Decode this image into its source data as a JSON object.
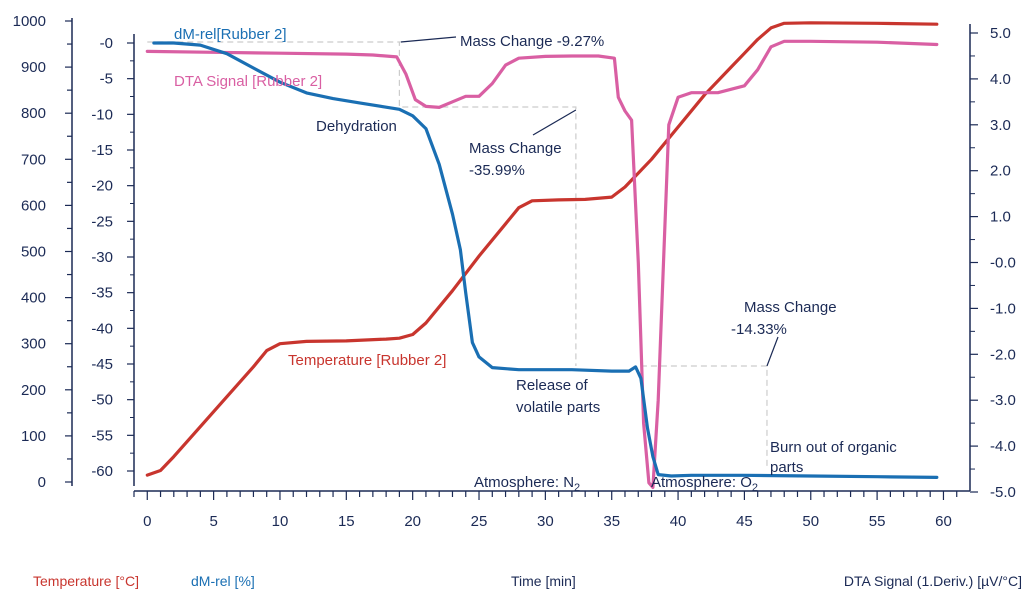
{
  "colors": {
    "temperature": "#c8352e",
    "dm": "#1a6fb3",
    "dta": "#d95fa3",
    "axis": "#1b2a55",
    "guide": "#cccccc"
  },
  "chart_data": {
    "type": "line",
    "x_axis": {
      "label": "Time [min]",
      "range": [
        -1,
        62
      ],
      "ticks": [
        0,
        5,
        10,
        15,
        20,
        25,
        30,
        35,
        40,
        45,
        50,
        55,
        60
      ]
    },
    "y_axes": {
      "temperature": {
        "label": "Temperature [°C]",
        "range": [
          -16,
          1000
        ],
        "ticks": [
          0,
          100,
          200,
          300,
          400,
          500,
          600,
          700,
          800,
          900,
          1000
        ]
      },
      "dm": {
        "label": "dM-rel [%]",
        "range": [
          -61,
          0.4
        ],
        "ticks": [
          "-0",
          "-5",
          "-10",
          "-15",
          "-20",
          "-25",
          "-30",
          "-35",
          "-40",
          "-45",
          "-50",
          "-55",
          "-60"
        ]
      },
      "dta": {
        "label": "DTA Signal (1.Deriv.) [µV/°C]",
        "range": [
          -5.0,
          5.2
        ],
        "ticks": [
          "5.0",
          "4.0",
          "3.0",
          "2.0",
          "1.0",
          "-0.0",
          "-1.0",
          "-2.0",
          "-3.0",
          "-4.0",
          "-5.0"
        ]
      }
    },
    "series": [
      {
        "name": "Temperature [Rubber 2]",
        "axis": "temperature",
        "color": "#c8352e",
        "points": [
          [
            0,
            15
          ],
          [
            1,
            25
          ],
          [
            2,
            55
          ],
          [
            4,
            120
          ],
          [
            6,
            185
          ],
          [
            8,
            250
          ],
          [
            9,
            285
          ],
          [
            10,
            300
          ],
          [
            12,
            305
          ],
          [
            15,
            306
          ],
          [
            18,
            310
          ],
          [
            19,
            312
          ],
          [
            20,
            320
          ],
          [
            21,
            345
          ],
          [
            23,
            415
          ],
          [
            25,
            490
          ],
          [
            27,
            560
          ],
          [
            28,
            595
          ],
          [
            29,
            610
          ],
          [
            31,
            612
          ],
          [
            33,
            613
          ],
          [
            35,
            618
          ],
          [
            36,
            640
          ],
          [
            38,
            700
          ],
          [
            40,
            770
          ],
          [
            42,
            840
          ],
          [
            44,
            900
          ],
          [
            45,
            930
          ],
          [
            46,
            960
          ],
          [
            47,
            985
          ],
          [
            48,
            995
          ],
          [
            50,
            996
          ],
          [
            55,
            995
          ],
          [
            59.5,
            993
          ]
        ]
      },
      {
        "name": "dM-rel[Rubber 2]",
        "axis": "dm",
        "color": "#1a6fb3",
        "points": [
          [
            0.5,
            0
          ],
          [
            2,
            0
          ],
          [
            4,
            -0.3
          ],
          [
            6,
            -1.5
          ],
          [
            8,
            -3.5
          ],
          [
            10,
            -5.5
          ],
          [
            12,
            -7
          ],
          [
            14,
            -7.8
          ],
          [
            16,
            -8.4
          ],
          [
            18,
            -9
          ],
          [
            19,
            -9.3
          ],
          [
            20,
            -10.2
          ],
          [
            21,
            -12
          ],
          [
            22,
            -17
          ],
          [
            23,
            -24
          ],
          [
            23.6,
            -29
          ],
          [
            24,
            -35
          ],
          [
            24.5,
            -42
          ],
          [
            25,
            -44
          ],
          [
            26,
            -45.5
          ],
          [
            28,
            -45.8
          ],
          [
            32,
            -45.8
          ],
          [
            35,
            -46
          ],
          [
            36.3,
            -46
          ],
          [
            36.8,
            -45.4
          ],
          [
            37.2,
            -47
          ],
          [
            37.7,
            -54
          ],
          [
            38.1,
            -58
          ],
          [
            38.5,
            -60.5
          ],
          [
            39.5,
            -60.7
          ],
          [
            41,
            -60.6
          ],
          [
            45,
            -60.6
          ],
          [
            50,
            -60.7
          ],
          [
            55,
            -60.8
          ],
          [
            59.5,
            -60.9
          ]
        ]
      },
      {
        "name": "DTA Signal [Rubber 2]",
        "axis": "dta",
        "color": "#d95fa3",
        "points": [
          [
            0,
            4.6
          ],
          [
            5,
            4.58
          ],
          [
            10,
            4.56
          ],
          [
            15,
            4.54
          ],
          [
            17,
            4.52
          ],
          [
            18.8,
            4.48
          ],
          [
            19.5,
            4.1
          ],
          [
            20.2,
            3.55
          ],
          [
            21,
            3.4
          ],
          [
            22,
            3.38
          ],
          [
            23,
            3.5
          ],
          [
            24,
            3.62
          ],
          [
            25,
            3.62
          ],
          [
            26,
            3.9
          ],
          [
            27,
            4.3
          ],
          [
            28,
            4.45
          ],
          [
            30,
            4.49
          ],
          [
            32,
            4.5
          ],
          [
            34,
            4.5
          ],
          [
            35.2,
            4.45
          ],
          [
            35.5,
            3.6
          ],
          [
            36,
            3.3
          ],
          [
            36.5,
            3.1
          ],
          [
            37,
            0
          ],
          [
            37.4,
            -3.5
          ],
          [
            37.8,
            -4.8
          ],
          [
            38.1,
            -4.9
          ],
          [
            38.5,
            -3
          ],
          [
            38.9,
            0
          ],
          [
            39.3,
            3
          ],
          [
            40,
            3.6
          ],
          [
            41,
            3.7
          ],
          [
            43,
            3.7
          ],
          [
            45,
            3.85
          ],
          [
            46,
            4.2
          ],
          [
            47,
            4.7
          ],
          [
            48,
            4.82
          ],
          [
            50,
            4.82
          ],
          [
            55,
            4.8
          ],
          [
            59.5,
            4.75
          ]
        ]
      }
    ],
    "annotations": [
      {
        "text": "Mass Change -9.27%"
      },
      {
        "text": "Mass Change"
      },
      {
        "text": "-35.99%"
      },
      {
        "text": "Mass Change"
      },
      {
        "text": "-14.33%"
      },
      {
        "text": "Dehydration"
      },
      {
        "text": "Release of"
      },
      {
        "text": "volatile parts"
      },
      {
        "text": "Burn out of organic"
      },
      {
        "text": "parts"
      },
      {
        "text": "Atmosphere: N"
      },
      {
        "text": "2"
      },
      {
        "text": "Atmosphere: O"
      },
      {
        "text": "2"
      }
    ],
    "grid": false,
    "legend": "inline"
  }
}
